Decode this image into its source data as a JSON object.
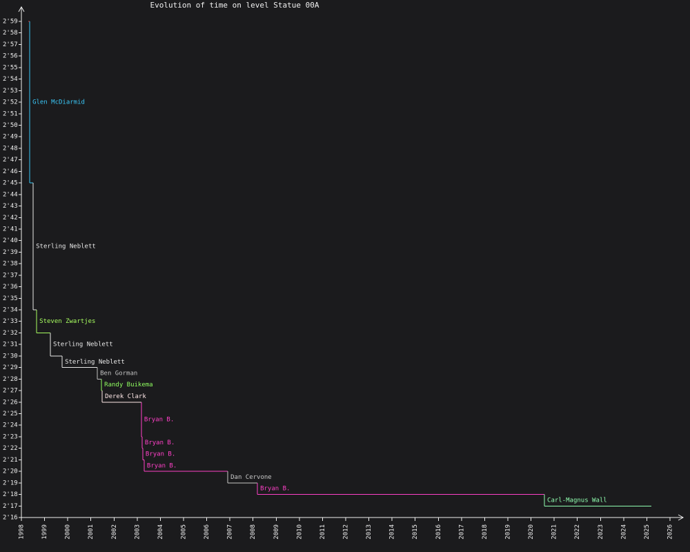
{
  "chart_data": {
    "type": "step",
    "title": "Evolution of time on level Statue 00A",
    "x": [
      1998.3,
      1998.36,
      1998.51,
      1998.66,
      1999.25,
      1999.76,
      2001.28,
      2001.46,
      2001.49,
      2003.18,
      2003.21,
      2003.24,
      2003.3,
      2006.91,
      2008.19,
      2020.58
    ],
    "x_end": 2025.2,
    "values": [
      179,
      165,
      154,
      152,
      150,
      149,
      148,
      147,
      146,
      143,
      142,
      141,
      140,
      139,
      138,
      137
    ],
    "labels": [
      null,
      "Glen McDiarmid",
      "Sterling Neblett",
      "Steven Zwartjes",
      "Sterling Neblett",
      "Sterling Neblett",
      "Ben Gorman",
      "Randy Buikema",
      "Derek Clark",
      "Bryan B.",
      "Bryan B.",
      "Bryan B.",
      "Bryan B.",
      "Dan Cervone",
      "Bryan B.",
      "Carl-Magnus Wall"
    ],
    "colors": [
      "#e03a3a",
      "#3ac8f8",
      "#e8e8e8",
      "#a8ff60",
      "#e8e8e8",
      "#e8e8e8",
      "#c0c0c0",
      "#90ff60",
      "#ffe8e8",
      "#ff40c8",
      "#ff40c8",
      "#ff40c8",
      "#ff40c8",
      "#c8c8c8",
      "#ff40c8",
      "#90ffb0"
    ],
    "xlim": [
      1998,
      2026
    ],
    "xticks": [
      1998,
      1999,
      2000,
      2001,
      2002,
      2003,
      2004,
      2005,
      2006,
      2007,
      2008,
      2009,
      2010,
      2011,
      2012,
      2013,
      2014,
      2015,
      2016,
      2017,
      2018,
      2019,
      2020,
      2021,
      2022,
      2023,
      2024,
      2025,
      2026
    ],
    "ylim": [
      136,
      179
    ],
    "yticks": [
      {
        "value": 136,
        "label": "2'16"
      },
      {
        "value": 137,
        "label": "2'17"
      },
      {
        "value": 138,
        "label": "2'18"
      },
      {
        "value": 139,
        "label": "2'19"
      },
      {
        "value": 140,
        "label": "2'20"
      },
      {
        "value": 141,
        "label": "2'21"
      },
      {
        "value": 142,
        "label": "2'22"
      },
      {
        "value": 143,
        "label": "2'23"
      },
      {
        "value": 144,
        "label": "2'24"
      },
      {
        "value": 145,
        "label": "2'25"
      },
      {
        "value": 146,
        "label": "2'26"
      },
      {
        "value": 147,
        "label": "2'27"
      },
      {
        "value": 148,
        "label": "2'28"
      },
      {
        "value": 149,
        "label": "2'29"
      },
      {
        "value": 150,
        "label": "2'30"
      },
      {
        "value": 151,
        "label": "2'31"
      },
      {
        "value": 152,
        "label": "2'32"
      },
      {
        "value": 153,
        "label": "2'33"
      },
      {
        "value": 154,
        "label": "2'34"
      },
      {
        "value": 155,
        "label": "2'35"
      },
      {
        "value": 156,
        "label": "2'36"
      },
      {
        "value": 157,
        "label": "2'37"
      },
      {
        "value": 158,
        "label": "2'38"
      },
      {
        "value": 159,
        "label": "2'39"
      },
      {
        "value": 160,
        "label": "2'40"
      },
      {
        "value": 161,
        "label": "2'41"
      },
      {
        "value": 162,
        "label": "2'42"
      },
      {
        "value": 163,
        "label": "2'43"
      },
      {
        "value": 164,
        "label": "2'44"
      },
      {
        "value": 165,
        "label": "2'45"
      },
      {
        "value": 166,
        "label": "2'46"
      },
      {
        "value": 167,
        "label": "2'47"
      },
      {
        "value": 168,
        "label": "2'48"
      },
      {
        "value": 169,
        "label": "2'49"
      },
      {
        "value": 170,
        "label": "2'50"
      },
      {
        "value": 171,
        "label": "2'51"
      },
      {
        "value": 172,
        "label": "2'52"
      },
      {
        "value": 173,
        "label": "2'53"
      },
      {
        "value": 174,
        "label": "2'54"
      },
      {
        "value": 175,
        "label": "2'55"
      },
      {
        "value": 176,
        "label": "2'56"
      },
      {
        "value": 177,
        "label": "2'57"
      },
      {
        "value": 178,
        "label": "2'58"
      },
      {
        "value": 179,
        "label": "2'59"
      }
    ]
  }
}
